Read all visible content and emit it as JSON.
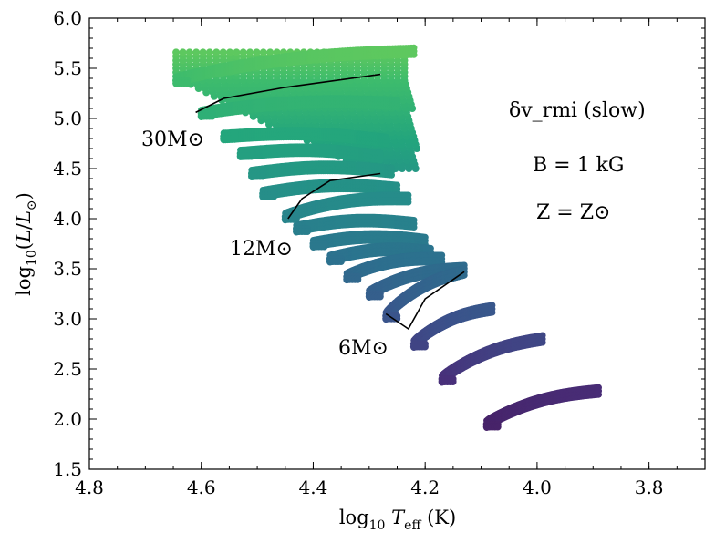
{
  "chart_data": {
    "type": "scatter",
    "xlabel": "log10 Teff (K)",
    "ylabel": "log10(L/L⊙)",
    "xlim": [
      4.8,
      3.7
    ],
    "ylim": [
      1.5,
      6.0
    ],
    "x_inverted": true,
    "x_ticks": [
      "4.8",
      "4.6",
      "4.4",
      "4.2",
      "4.0",
      "3.8"
    ],
    "y_ticks": [
      "1.5",
      "2.0",
      "2.5",
      "3.0",
      "3.5",
      "4.0",
      "4.5",
      "5.0",
      "5.5",
      "6.0"
    ],
    "grid": false,
    "colormap": "viridis (color encodes luminosity/mass)",
    "colors": {
      "low": "#46185c",
      "mid_low": "#3a4f8a",
      "mid": "#2d7f8e",
      "mid_high": "#28a47f",
      "high": "#4fc26a",
      "track_line": "#000000"
    },
    "annotations": {
      "model": "δv_rmi (slow)",
      "field": "B = 1 kG",
      "metallicity": "Z = Z⊙",
      "label_30": "30M⊙",
      "label_12": "12M⊙",
      "label_6": "6M⊙"
    },
    "series": [
      {
        "mass": 30,
        "x_start": 4.645,
        "y_start": 5.38,
        "x_end": 4.22,
        "y_end": 5.67,
        "highlighted": true,
        "track": [
          [
            4.61,
            5.06
          ],
          [
            4.56,
            5.2
          ],
          [
            4.45,
            5.31
          ],
          [
            4.28,
            5.44
          ]
        ]
      },
      {
        "mass": 25,
        "x_start": 4.6,
        "y_start": 5.05,
        "x_end": 4.25,
        "y_end": 5.15
      },
      {
        "mass": 20,
        "x_start": 4.56,
        "y_start": 4.82,
        "x_end": 4.27,
        "y_end": 4.78
      },
      {
        "mass": 18,
        "x_start": 4.53,
        "y_start": 4.65,
        "x_end": 4.28,
        "y_end": 4.62
      },
      {
        "mass": 16,
        "x_start": 4.51,
        "y_start": 4.45,
        "x_end": 4.26,
        "y_end": 4.47
      },
      {
        "mass": 14,
        "x_start": 4.49,
        "y_start": 4.25,
        "x_end": 4.25,
        "y_end": 4.3
      },
      {
        "mass": 12,
        "x_start": 4.45,
        "y_start": 4.02,
        "x_end": 4.23,
        "y_end": 4.2,
        "highlighted": true,
        "track": [
          [
            4.445,
            4.0
          ],
          [
            4.42,
            4.2
          ],
          [
            4.37,
            4.38
          ],
          [
            4.28,
            4.45
          ]
        ]
      },
      {
        "mass": 11,
        "x_start": 4.43,
        "y_start": 3.9,
        "x_end": 4.22,
        "y_end": 3.95
      },
      {
        "mass": 10,
        "x_start": 4.4,
        "y_start": 3.75,
        "x_end": 4.2,
        "y_end": 3.78
      },
      {
        "mass": 9,
        "x_start": 4.37,
        "y_start": 3.6,
        "x_end": 4.19,
        "y_end": 3.67
      },
      {
        "mass": 8,
        "x_start": 4.34,
        "y_start": 3.42,
        "x_end": 4.17,
        "y_end": 3.6
      },
      {
        "mass": 7,
        "x_start": 4.3,
        "y_start": 3.25,
        "x_end": 4.13,
        "y_end": 3.5
      },
      {
        "mass": 6,
        "x_start": 4.27,
        "y_start": 3.03,
        "x_end": 4.13,
        "y_end": 3.47,
        "highlighted": true,
        "track": [
          [
            4.27,
            3.05
          ],
          [
            4.23,
            2.9
          ],
          [
            4.2,
            3.2
          ],
          [
            4.13,
            3.47
          ]
        ]
      },
      {
        "mass": 5,
        "x_start": 4.22,
        "y_start": 2.75,
        "x_end": 4.08,
        "y_end": 3.1
      },
      {
        "mass": 4,
        "x_start": 4.17,
        "y_start": 2.4,
        "x_end": 3.99,
        "y_end": 2.8
      },
      {
        "mass": 3,
        "x_start": 4.09,
        "y_start": 1.95,
        "x_end": 3.89,
        "y_end": 2.28
      }
    ]
  }
}
